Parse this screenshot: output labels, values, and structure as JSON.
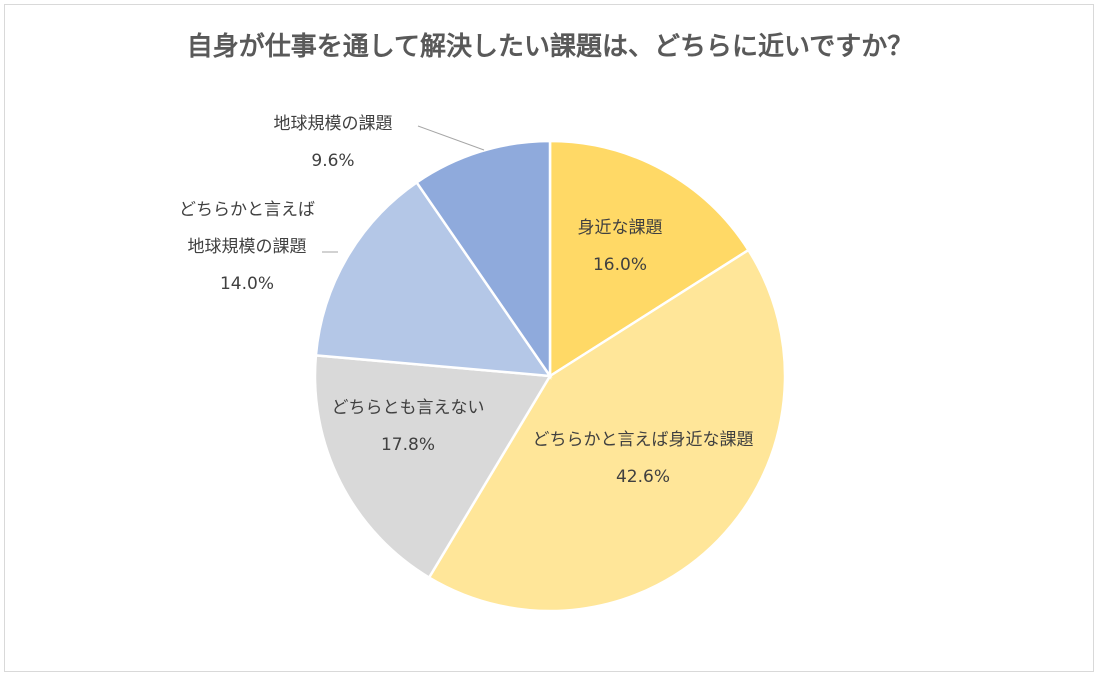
{
  "chart_data": {
    "type": "pie",
    "title": "自身が仕事を通して解決したい課題は、どちらに近いですか？",
    "start": "top",
    "direction": "clockwise",
    "slices": [
      {
        "label": "身近な課題",
        "label_lines": [
          "身近な課題"
        ],
        "value": 16.0,
        "value_label": "16.0%",
        "color": "#FFD966"
      },
      {
        "label": "どちらかと言えば身近な課題",
        "label_lines": [
          "どちらかと言えば身近な課題"
        ],
        "value": 42.6,
        "value_label": "42.6%",
        "color": "#FFE699"
      },
      {
        "label": "どちらとも言えない",
        "label_lines": [
          "どちらとも言えない"
        ],
        "value": 17.8,
        "value_label": "17.8%",
        "color": "#D9D9D9"
      },
      {
        "label": "どちらかと言えば地球規模の課題",
        "label_lines": [
          "どちらかと言えば",
          "地球規模の課題"
        ],
        "value": 14.0,
        "value_label": "14.0%",
        "color": "#B4C7E7"
      },
      {
        "label": "地球規模の課題",
        "label_lines": [
          "地球規模の課題"
        ],
        "value": 9.6,
        "value_label": "9.6%",
        "color": "#8FAADC"
      }
    ]
  }
}
